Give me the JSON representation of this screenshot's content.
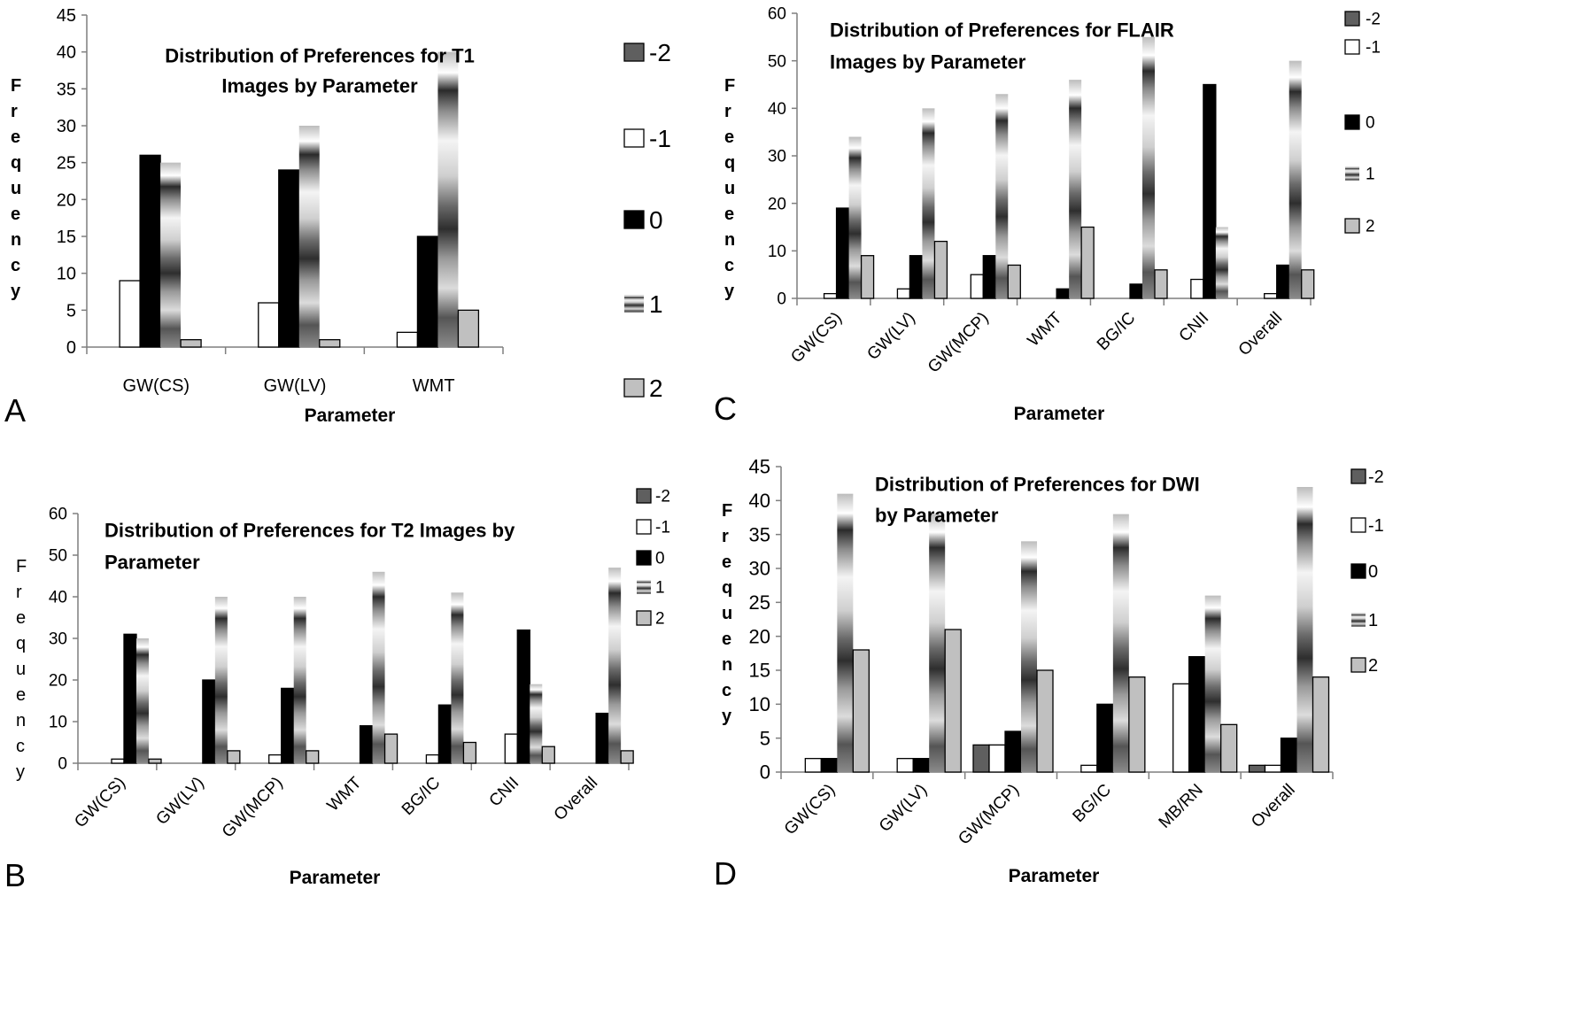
{
  "patterns": {
    "neg2": "#5f5f5f",
    "neg1": "#ffffff",
    "zero": "#000000",
    "one": "stripe-gradient",
    "two": "#c0c0c0"
  },
  "chart_data": [
    {
      "panel": "A",
      "type": "bar",
      "title_lines": [
        "Distribution of Preferences for T1",
        "Images by Parameter"
      ],
      "xlabel": "Parameter",
      "ylabel": "Frequency",
      "categories": [
        "GW(CS)",
        "GW(LV)",
        "WMT"
      ],
      "ylim": [
        0,
        45
      ],
      "yticks": [
        0,
        5,
        10,
        15,
        20,
        25,
        30,
        35,
        40,
        45
      ],
      "legend": [
        "-2",
        "-1",
        "0",
        "1",
        "2"
      ],
      "series": [
        {
          "name": "-2",
          "values": [
            0,
            0,
            0
          ]
        },
        {
          "name": "-1",
          "values": [
            9,
            6,
            2
          ]
        },
        {
          "name": "0",
          "values": [
            26,
            24,
            15
          ]
        },
        {
          "name": "1",
          "values": [
            25,
            30,
            40
          ]
        },
        {
          "name": "2",
          "values": [
            1,
            1,
            5
          ]
        }
      ]
    },
    {
      "panel": "B",
      "type": "bar",
      "title_lines": [
        "Distribution of Preferences for T2 Images by",
        "Parameter"
      ],
      "xlabel": "Parameter",
      "ylabel": "Frequency",
      "categories": [
        "GW(CS)",
        "GW(LV)",
        "GW(MCP)",
        "WMT",
        "BG/IC",
        "CNII",
        "Overall"
      ],
      "ylim": [
        0,
        60
      ],
      "yticks": [
        0,
        10,
        20,
        30,
        40,
        50,
        60
      ],
      "legend": [
        "-2",
        "-1",
        "0",
        "1",
        "2"
      ],
      "series": [
        {
          "name": "-2",
          "values": [
            0,
            0,
            0,
            0,
            0,
            0,
            0
          ]
        },
        {
          "name": "-1",
          "values": [
            1,
            0,
            2,
            0,
            2,
            7,
            0
          ]
        },
        {
          "name": "0",
          "values": [
            31,
            20,
            18,
            9,
            14,
            32,
            12
          ]
        },
        {
          "name": "1",
          "values": [
            30,
            40,
            40,
            46,
            41,
            19,
            47
          ]
        },
        {
          "name": "2",
          "values": [
            1,
            3,
            3,
            7,
            5,
            4,
            3
          ]
        }
      ]
    },
    {
      "panel": "C",
      "type": "bar",
      "title_lines": [
        "Distribution of Preferences for FLAIR",
        "Images by Parameter"
      ],
      "xlabel": "Parameter",
      "ylabel": "Frequency",
      "categories": [
        "GW(CS)",
        "GW(LV)",
        "GW(MCP)",
        "WMT",
        "BG/IC",
        "CNII",
        "Overall"
      ],
      "ylim": [
        0,
        60
      ],
      "yticks": [
        0,
        10,
        20,
        30,
        40,
        50,
        60
      ],
      "legend": [
        "-2",
        "-1",
        "0",
        "1",
        "2"
      ],
      "series": [
        {
          "name": "-2",
          "values": [
            0,
            0,
            0,
            0,
            0,
            0,
            0
          ]
        },
        {
          "name": "-1",
          "values": [
            1,
            2,
            5,
            0,
            0,
            4,
            1
          ]
        },
        {
          "name": "0",
          "values": [
            19,
            9,
            9,
            2,
            3,
            45,
            7
          ]
        },
        {
          "name": "1",
          "values": [
            34,
            40,
            43,
            46,
            55,
            15,
            50
          ]
        },
        {
          "name": "2",
          "values": [
            9,
            12,
            7,
            15,
            6,
            0,
            6
          ]
        }
      ]
    },
    {
      "panel": "D",
      "type": "bar",
      "title_lines": [
        "Distribution of Preferences for DWI",
        "by Parameter"
      ],
      "xlabel": "Parameter",
      "ylabel": "Frequency",
      "categories": [
        "GW(CS)",
        "GW(LV)",
        "GW(MCP)",
        "BG/IC",
        "MB/RN",
        "Overall"
      ],
      "ylim": [
        0,
        45
      ],
      "yticks": [
        0,
        5,
        10,
        15,
        20,
        25,
        30,
        35,
        40,
        45
      ],
      "legend": [
        "-2",
        "-1",
        "0",
        "1",
        "2"
      ],
      "series": [
        {
          "name": "-2",
          "values": [
            0,
            0,
            4,
            0,
            0,
            1
          ]
        },
        {
          "name": "-1",
          "values": [
            2,
            2,
            4,
            1,
            13,
            1
          ]
        },
        {
          "name": "0",
          "values": [
            2,
            2,
            6,
            10,
            17,
            5
          ]
        },
        {
          "name": "1",
          "values": [
            41,
            38,
            34,
            38,
            26,
            42
          ]
        },
        {
          "name": "2",
          "values": [
            18,
            21,
            15,
            14,
            7,
            14
          ]
        }
      ]
    }
  ]
}
